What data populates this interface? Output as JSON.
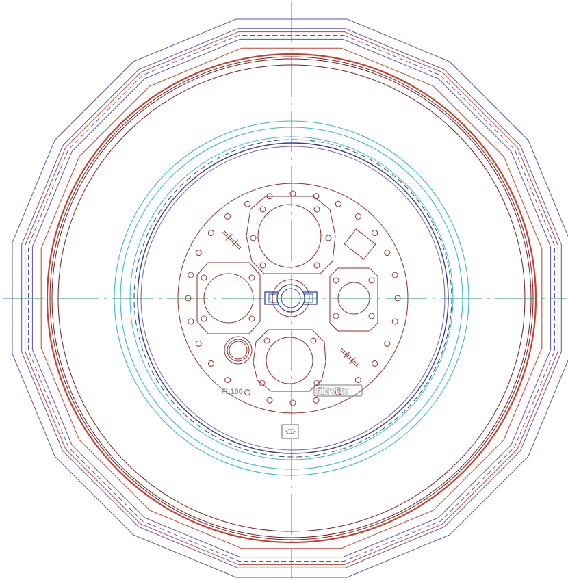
{
  "drawing": {
    "model_label": "FL100",
    "brand_label": "fibrelite",
    "colors": {
      "centerline": "#1e9a5a",
      "outer_polygon": "#5a4fb8",
      "red": "#d23a2a",
      "dark_red": "#7a1a1a",
      "maroon": "#9a2a2a",
      "cyan": "#35b9d0",
      "blue": "#2c3ea0",
      "purple": "#7a5ab8",
      "gray": "#6a6a6a"
    }
  }
}
